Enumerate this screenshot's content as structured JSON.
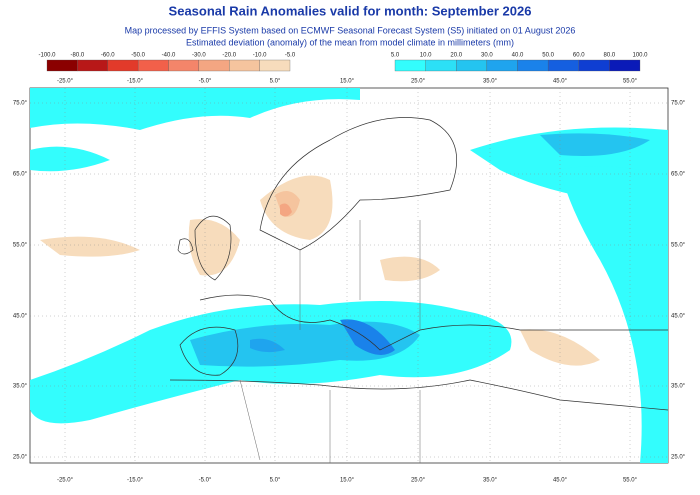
{
  "header": {
    "title": "Seasonal Rain Anomalies valid for month: September 2026",
    "subtitle_1": "Map processed by EFFIS System based on ECMWF Seasonal Forecast System (S5) initiated on 01 August 2026",
    "subtitle_2": "Estimated deviation (anomaly) of the mean from model climate in millimeters (mm)"
  },
  "legend": {
    "negative": {
      "labels": [
        "-100.0",
        "-80.0",
        "-60.0",
        "-50.0",
        "-40.0",
        "-30.0",
        "-20.0",
        "-10.0",
        "-5.0"
      ],
      "colors": [
        "#8b0000",
        "#b81818",
        "#e23a2a",
        "#f2604a",
        "#f4856a",
        "#f4a682",
        "#f5c49e",
        "#f7dcbc"
      ]
    },
    "positive": {
      "labels": [
        "5.0",
        "10.0",
        "20.0",
        "30.0",
        "40.0",
        "50.0",
        "60.0",
        "80.0",
        "100.0"
      ],
      "colors": [
        "#33fdfd",
        "#2ce0f6",
        "#24c4f0",
        "#1fa4ee",
        "#1a82ea",
        "#155fe0",
        "#0f3ed2",
        "#0a1ab8"
      ]
    }
  },
  "axes": {
    "top_lon": [
      "-25.0°",
      "-15.0°",
      "-5.0°",
      "5.0°",
      "15.0°",
      "25.0°",
      "35.0°",
      "45.0°",
      "55.0°"
    ],
    "bottom_lon": [
      "-25.0°",
      "-15.0°",
      "-5.0°",
      "5.0°",
      "15.0°",
      "25.0°",
      "35.0°",
      "45.0°",
      "55.0°"
    ],
    "left_lat": [
      "75.0°",
      "65.0°",
      "55.0°",
      "45.0°",
      "35.0°",
      "25.0°"
    ],
    "right_lat": [
      "75.0°",
      "65.0°",
      "55.0°",
      "45.0°",
      "35.0°",
      "25.0°"
    ]
  }
}
